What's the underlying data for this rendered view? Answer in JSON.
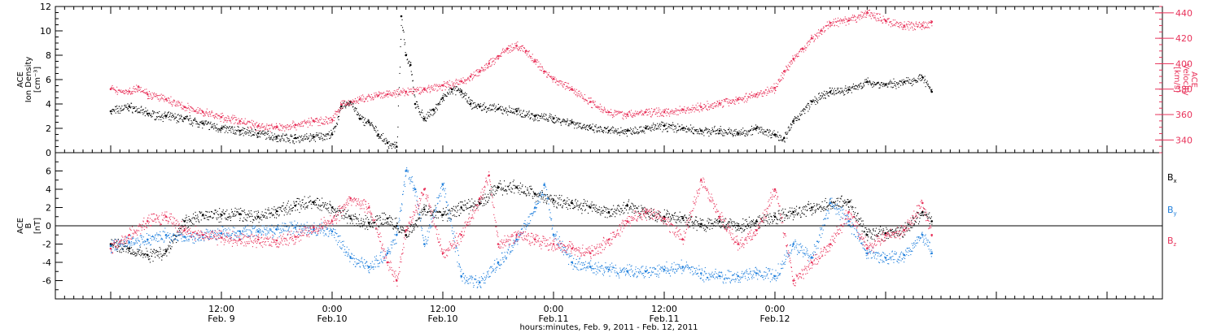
{
  "chart_data": [
    {
      "type": "scatter",
      "panel": "top",
      "left_axis": {
        "label_lines": [
          "ACE",
          "Ion Density",
          "[cm⁻³]"
        ],
        "ylim": [
          0,
          12
        ],
        "ticks": [
          0,
          2,
          4,
          6,
          8,
          10,
          12
        ]
      },
      "right_axis": {
        "label_lines": [
          "ACE",
          "Velocity",
          "[km/s]"
        ],
        "ylim": [
          330,
          445
        ],
        "ticks": [
          340,
          360,
          380,
          400,
          420,
          440
        ],
        "color": "#e8325a"
      },
      "series": [
        {
          "name": "Ion Density",
          "color": "#000000",
          "axis": "left",
          "points": [
            [
              0,
              3.4
            ],
            [
              2,
              3.8
            ],
            [
              4,
              3.2
            ],
            [
              6,
              3.0
            ],
            [
              8,
              2.8
            ],
            [
              10,
              2.4
            ],
            [
              12,
              2.0
            ],
            [
              14,
              1.8
            ],
            [
              16,
              1.6
            ],
            [
              18,
              1.3
            ],
            [
              20,
              1.2
            ],
            [
              22,
              1.3
            ],
            [
              24,
              1.5
            ],
            [
              25,
              3.8
            ],
            [
              26,
              4.2
            ],
            [
              27,
              2.8
            ],
            [
              28,
              2.5
            ],
            [
              29,
              1.5
            ],
            [
              30,
              0.8
            ],
            [
              31,
              0.5
            ],
            [
              31.5,
              11.2
            ],
            [
              32,
              8.0
            ],
            [
              32.5,
              7.2
            ],
            [
              33,
              4.0
            ],
            [
              34,
              2.8
            ],
            [
              35,
              3.5
            ],
            [
              36,
              4.5
            ],
            [
              37,
              5.2
            ],
            [
              38,
              5.0
            ],
            [
              39,
              4.0
            ],
            [
              40,
              3.8
            ],
            [
              42,
              3.6
            ],
            [
              44,
              3.4
            ],
            [
              46,
              3.0
            ],
            [
              48,
              2.8
            ],
            [
              50,
              2.5
            ],
            [
              52,
              2.0
            ],
            [
              54,
              1.8
            ],
            [
              56,
              1.8
            ],
            [
              58,
              2.0
            ],
            [
              60,
              2.2
            ],
            [
              62,
              2.0
            ],
            [
              64,
              1.8
            ],
            [
              66,
              1.8
            ],
            [
              68,
              1.6
            ],
            [
              70,
              2.0
            ],
            [
              72,
              1.5
            ],
            [
              73,
              1.2
            ],
            [
              74,
              2.6
            ],
            [
              76,
              4.2
            ],
            [
              78,
              5.0
            ],
            [
              80,
              5.2
            ],
            [
              82,
              5.8
            ],
            [
              84,
              5.6
            ],
            [
              86,
              5.8
            ],
            [
              88,
              6.2
            ],
            [
              89,
              5.0
            ]
          ]
        },
        {
          "name": "Velocity",
          "color": "#e8325a",
          "axis": "right",
          "points": [
            [
              0,
              380
            ],
            [
              2,
              378
            ],
            [
              3,
              382
            ],
            [
              4,
              376
            ],
            [
              6,
              372
            ],
            [
              8,
              366
            ],
            [
              10,
              362
            ],
            [
              12,
              358
            ],
            [
              14,
              355
            ],
            [
              16,
              351
            ],
            [
              18,
              350
            ],
            [
              20,
              352
            ],
            [
              22,
              355
            ],
            [
              24,
              356
            ],
            [
              25,
              368
            ],
            [
              27,
              372
            ],
            [
              29,
              375
            ],
            [
              30,
              376
            ],
            [
              32,
              378
            ],
            [
              34,
              380
            ],
            [
              36,
              383
            ],
            [
              38,
              386
            ],
            [
              39,
              390
            ],
            [
              40,
              394
            ],
            [
              41,
              400
            ],
            [
              42,
              406
            ],
            [
              43,
              412
            ],
            [
              44,
              414
            ],
            [
              45,
              410
            ],
            [
              46,
              402
            ],
            [
              47,
              394
            ],
            [
              48,
              388
            ],
            [
              50,
              380
            ],
            [
              52,
              370
            ],
            [
              54,
              362
            ],
            [
              56,
              360
            ],
            [
              58,
              362
            ],
            [
              60,
              362
            ],
            [
              62,
              364
            ],
            [
              64,
              366
            ],
            [
              66,
              369
            ],
            [
              68,
              372
            ],
            [
              70,
              376
            ],
            [
              72,
              381
            ],
            [
              73,
              394
            ],
            [
              74,
              404
            ],
            [
              75,
              412
            ],
            [
              76,
              420
            ],
            [
              77,
              426
            ],
            [
              78,
              432
            ],
            [
              80,
              434
            ],
            [
              82,
              440
            ],
            [
              84,
              434
            ],
            [
              86,
              430
            ],
            [
              88,
              430
            ],
            [
              89,
              433
            ]
          ]
        }
      ]
    },
    {
      "type": "scatter",
      "panel": "bottom",
      "left_axis": {
        "label_lines": [
          "ACE",
          "B",
          "[nT]"
        ],
        "ylim": [
          -8,
          8
        ],
        "ticks": [
          -6,
          -4,
          -2,
          0,
          2,
          4,
          6
        ]
      },
      "legend": [
        "B",
        "B",
        "B"
      ],
      "legend_subscripts": [
        "x",
        "y",
        "z"
      ],
      "series": [
        {
          "name": "Bx",
          "color": "#000000",
          "points": [
            [
              0,
              -2.0
            ],
            [
              2,
              -2.5
            ],
            [
              4,
              -3.2
            ],
            [
              6,
              -2.8
            ],
            [
              8,
              0.5
            ],
            [
              10,
              1.2
            ],
            [
              12,
              1.2
            ],
            [
              14,
              1.3
            ],
            [
              16,
              1.0
            ],
            [
              18,
              1.6
            ],
            [
              20,
              2.2
            ],
            [
              22,
              2.6
            ],
            [
              24,
              2.0
            ],
            [
              26,
              0.8
            ],
            [
              28,
              0.3
            ],
            [
              30,
              0.8
            ],
            [
              31,
              0.0
            ],
            [
              32,
              -1.0
            ],
            [
              34,
              1.8
            ],
            [
              36,
              1.2
            ],
            [
              38,
              2.0
            ],
            [
              40,
              2.5
            ],
            [
              42,
              4.2
            ],
            [
              44,
              4.2
            ],
            [
              46,
              3.5
            ],
            [
              48,
              2.8
            ],
            [
              50,
              2.5
            ],
            [
              52,
              2.0
            ],
            [
              54,
              1.5
            ],
            [
              56,
              2.2
            ],
            [
              58,
              1.5
            ],
            [
              60,
              1.0
            ],
            [
              62,
              0.8
            ],
            [
              64,
              0.2
            ],
            [
              66,
              0.5
            ],
            [
              68,
              0.0
            ],
            [
              70,
              0.5
            ],
            [
              72,
              1.0
            ],
            [
              74,
              1.5
            ],
            [
              76,
              2.0
            ],
            [
              78,
              2.5
            ],
            [
              80,
              2.6
            ],
            [
              82,
              -1.0
            ],
            [
              84,
              -0.8
            ],
            [
              86,
              -0.5
            ],
            [
              88,
              1.5
            ],
            [
              89,
              0.5
            ]
          ]
        },
        {
          "name": "By",
          "color": "#1f7fdc",
          "points": [
            [
              0,
              -2.2
            ],
            [
              2,
              -1.8
            ],
            [
              4,
              -1.5
            ],
            [
              6,
              -1.0
            ],
            [
              8,
              -1.2
            ],
            [
              10,
              -1.0
            ],
            [
              12,
              -0.8
            ],
            [
              14,
              -0.6
            ],
            [
              16,
              -0.6
            ],
            [
              18,
              -0.4
            ],
            [
              20,
              -0.2
            ],
            [
              22,
              -0.4
            ],
            [
              24,
              -0.6
            ],
            [
              26,
              -3.5
            ],
            [
              28,
              -4.5
            ],
            [
              30,
              -3.0
            ],
            [
              31,
              -1.0
            ],
            [
              32,
              6.0
            ],
            [
              33,
              4.0
            ],
            [
              34,
              -2.0
            ],
            [
              36,
              4.5
            ],
            [
              38,
              -5.5
            ],
            [
              40,
              -6.2
            ],
            [
              42,
              -4.0
            ],
            [
              44,
              -1.5
            ],
            [
              46,
              2.0
            ],
            [
              47,
              4.5
            ],
            [
              48,
              -1.0
            ],
            [
              50,
              -4.0
            ],
            [
              52,
              -4.5
            ],
            [
              54,
              -4.8
            ],
            [
              56,
              -5.0
            ],
            [
              58,
              -5.0
            ],
            [
              60,
              -4.8
            ],
            [
              62,
              -4.5
            ],
            [
              64,
              -5.2
            ],
            [
              66,
              -5.5
            ],
            [
              68,
              -5.5
            ],
            [
              70,
              -5.2
            ],
            [
              72,
              -5.5
            ],
            [
              74,
              -2.0
            ],
            [
              76,
              -3.5
            ],
            [
              78,
              2.5
            ],
            [
              80,
              0.5
            ],
            [
              82,
              -3.0
            ],
            [
              84,
              -3.5
            ],
            [
              86,
              -3.2
            ],
            [
              88,
              -1.0
            ],
            [
              89,
              -3.0
            ]
          ]
        },
        {
          "name": "Bz",
          "color": "#e8325a",
          "points": [
            [
              0,
              -2.5
            ],
            [
              2,
              -1.0
            ],
            [
              4,
              0.5
            ],
            [
              6,
              1.0
            ],
            [
              8,
              -0.5
            ],
            [
              10,
              -1.0
            ],
            [
              12,
              -1.3
            ],
            [
              14,
              -1.5
            ],
            [
              16,
              -1.5
            ],
            [
              18,
              -1.6
            ],
            [
              20,
              -1.2
            ],
            [
              22,
              -0.2
            ],
            [
              24,
              0.5
            ],
            [
              26,
              3.0
            ],
            [
              28,
              2.0
            ],
            [
              30,
              -4.0
            ],
            [
              31,
              -6.0
            ],
            [
              32,
              -0.5
            ],
            [
              34,
              4.0
            ],
            [
              36,
              -3.0
            ],
            [
              38,
              -1.0
            ],
            [
              40,
              3.0
            ],
            [
              41,
              5.5
            ],
            [
              42,
              -2.0
            ],
            [
              44,
              -1.0
            ],
            [
              46,
              -1.5
            ],
            [
              48,
              -2.0
            ],
            [
              50,
              -2.5
            ],
            [
              52,
              -3.0
            ],
            [
              54,
              -1.5
            ],
            [
              56,
              0.5
            ],
            [
              58,
              1.5
            ],
            [
              60,
              0.8
            ],
            [
              62,
              -1.5
            ],
            [
              64,
              5.0
            ],
            [
              66,
              1.0
            ],
            [
              68,
              -2.0
            ],
            [
              70,
              -0.5
            ],
            [
              72,
              4.0
            ],
            [
              74,
              -6.0
            ],
            [
              76,
              -4.0
            ],
            [
              78,
              -2.0
            ],
            [
              80,
              1.5
            ],
            [
              82,
              -2.5
            ],
            [
              84,
              -1.0
            ],
            [
              86,
              -0.5
            ],
            [
              88,
              2.5
            ],
            [
              89,
              -1.0
            ]
          ]
        }
      ]
    }
  ],
  "x_axis": {
    "ticks": [
      {
        "t": 12,
        "time": "12:00",
        "date": "Feb. 9"
      },
      {
        "t": 24,
        "time": "0:00",
        "date": "Feb.10"
      },
      {
        "t": 36,
        "time": "12:00",
        "date": "Feb.10"
      },
      {
        "t": 48,
        "time": "0:00",
        "date": "Feb.11"
      },
      {
        "t": 60,
        "time": "12:00",
        "date": "Feb.11"
      },
      {
        "t": 72,
        "time": "0:00",
        "date": "Feb.12"
      }
    ],
    "label": "hours:minutes, Feb.  9, 2011 - Feb. 12, 2011"
  }
}
